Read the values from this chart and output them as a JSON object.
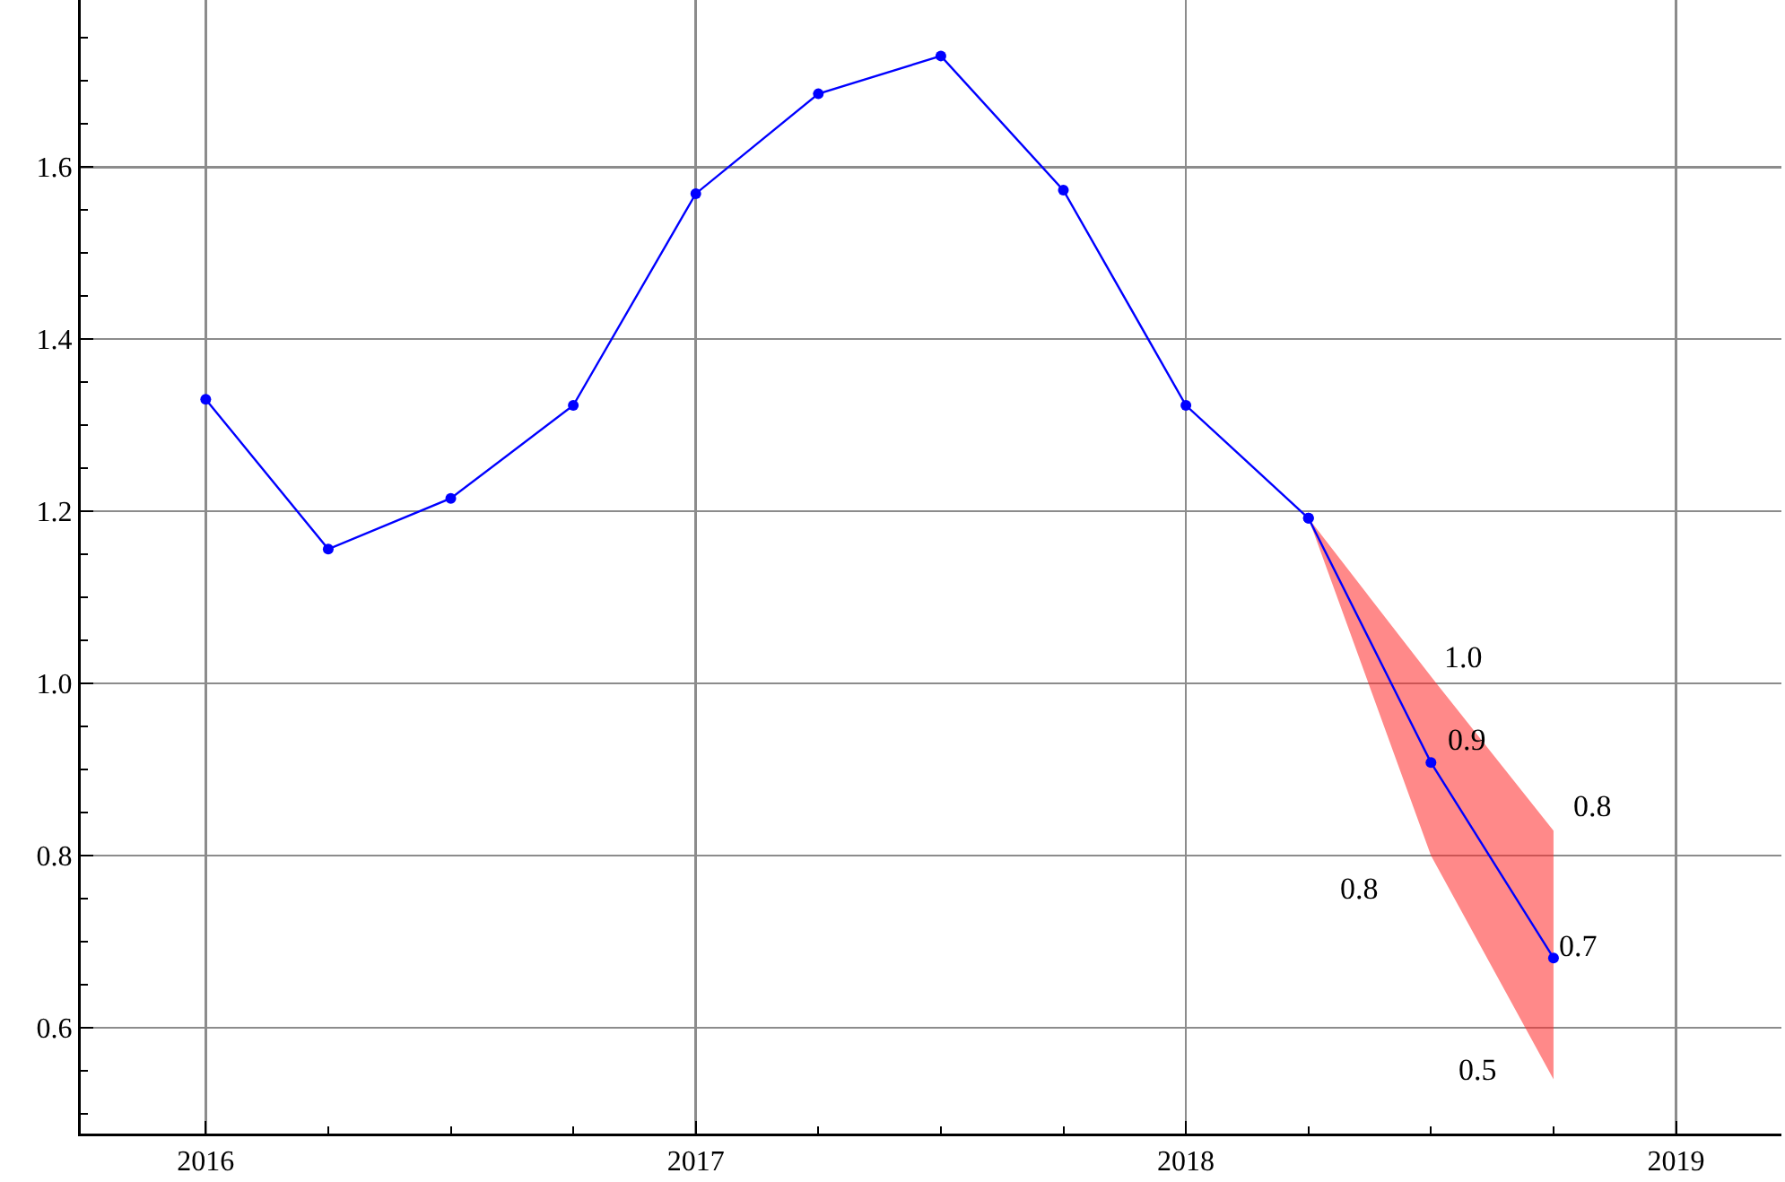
{
  "chart_data": {
    "type": "line",
    "series": [
      {
        "color": "#0000ff",
        "x": [
          2016,
          2016.25,
          2016.5,
          2016.75,
          2017,
          2017.25,
          2017.5,
          2017.75,
          2018,
          2018.25
        ],
        "values": [
          1.33,
          1.156,
          1.215,
          1.323,
          1.569,
          1.685,
          1.729,
          1.573,
          1.323,
          1.192
        ]
      },
      {
        "color": "#0000ff",
        "x": [
          2018.25,
          2018.5,
          2018.75
        ],
        "values": [
          1.192,
          0.908,
          0.681
        ],
        "lower": [
          1.192,
          0.8,
          0.54
        ],
        "upper": [
          1.192,
          1.008,
          0.829
        ]
      }
    ],
    "xlim": [
      2015.745,
      2019.215
    ],
    "xticks": [
      2016,
      {
        "value": 2016.25,
        "label": null
      },
      {
        "value": 2016.5,
        "label": null
      },
      {
        "value": 2016.75,
        "label": null
      },
      2017,
      {
        "value": 2017.25,
        "label": null
      },
      {
        "value": 2017.5,
        "label": null
      },
      {
        "value": 2017.75,
        "label": null
      },
      2018,
      {
        "value": 2018.25,
        "label": null
      },
      {
        "value": 2018.5,
        "label": null
      },
      {
        "value": 2018.75,
        "label": null
      },
      2019
    ],
    "ylim": [
      0.477,
      1.794
    ],
    "yticks": [
      {
        "value": 0.5,
        "label": null
      },
      {
        "value": 0.55,
        "label": null
      },
      {
        "value": 0.6,
        "label": "0.6"
      },
      {
        "value": 0.65,
        "label": null
      },
      {
        "value": 0.7,
        "label": null
      },
      {
        "value": 0.75,
        "label": null
      },
      {
        "value": 0.8,
        "label": "0.8"
      },
      {
        "value": 0.85,
        "label": null
      },
      {
        "value": 0.9,
        "label": null
      },
      {
        "value": 0.95,
        "label": null
      },
      {
        "value": 1.0,
        "label": "1.0"
      },
      {
        "value": 1.05,
        "label": null
      },
      {
        "value": 1.1,
        "label": null
      },
      {
        "value": 1.15,
        "label": null
      },
      {
        "value": 1.2,
        "label": "1.2"
      },
      {
        "value": 1.25,
        "label": null
      },
      {
        "value": 1.3,
        "label": null
      },
      {
        "value": 1.35,
        "label": null
      },
      {
        "value": 1.4,
        "label": "1.4"
      },
      {
        "value": 1.45,
        "label": null
      },
      {
        "value": 1.5,
        "label": null
      },
      {
        "value": 1.55,
        "label": null
      },
      {
        "value": 1.6,
        "label": "1.6"
      },
      {
        "value": 1.65,
        "label": null
      },
      {
        "value": 1.7,
        "label": null
      },
      {
        "value": 1.75,
        "label": null
      }
    ],
    "grid": true,
    "marker": "circle",
    "annotations": [
      "1.0",
      "0.9",
      "0.8",
      "0.8",
      "0.7",
      "0.5"
    ]
  }
}
